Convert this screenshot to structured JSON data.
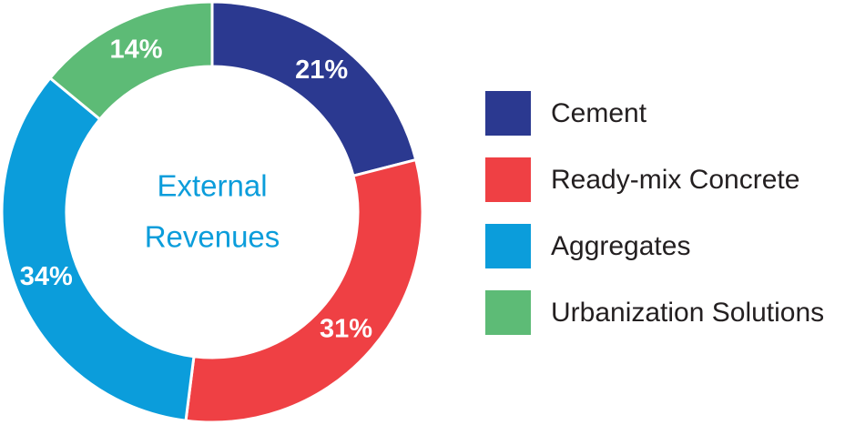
{
  "chart_data": {
    "type": "donut",
    "center_text": [
      "External",
      "Revenues"
    ],
    "categories": [
      "Cement",
      "Ready-mix Concrete",
      "Aggregates",
      "Urbanization Solutions"
    ],
    "values": [
      21,
      31,
      34,
      14
    ],
    "value_labels": [
      "21%",
      "31%",
      "34%",
      "14%"
    ],
    "colors": [
      "#2b3990",
      "#ef4044",
      "#0b9ddb",
      "#5dbb76"
    ],
    "legend": "right"
  }
}
